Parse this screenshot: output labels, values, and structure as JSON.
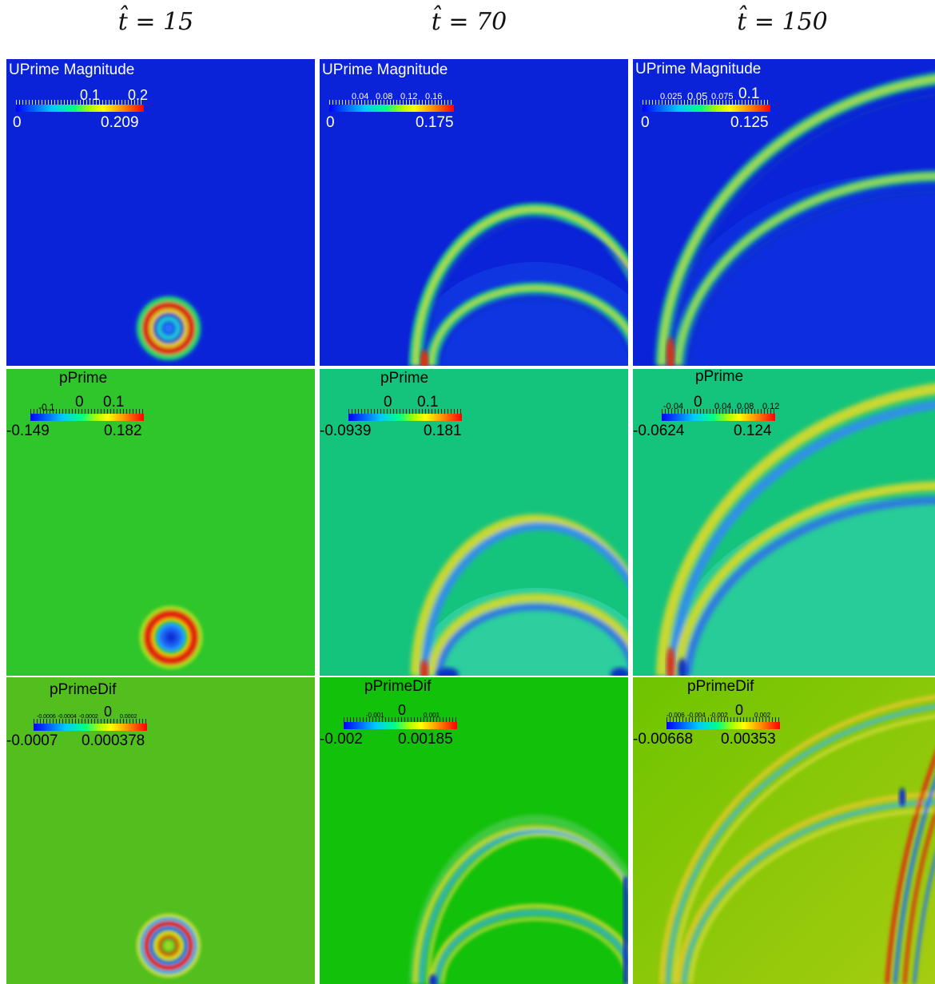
{
  "columns": [
    {
      "title": "t̂ = 15"
    },
    {
      "title": "t̂ = 70"
    },
    {
      "title": "t̂ = 150"
    }
  ],
  "panels": [
    {
      "label": "UPrime Magnitude",
      "range_min": "0",
      "range_max": "0.209",
      "ticks": [
        "0.1",
        "0.2"
      ]
    },
    {
      "label": "UPrime Magnitude",
      "range_min": "0",
      "range_max": "0.175",
      "ticks": [
        "0.04",
        "0.08",
        "0.12",
        "0.16"
      ]
    },
    {
      "label": "UPrime Magnitude",
      "range_min": "0",
      "range_max": "0.125",
      "ticks": [
        "0.025",
        "0.05",
        "0.075",
        "0.1"
      ]
    },
    {
      "label": "pPrime",
      "range_min": "-0.149",
      "range_max": "0.182",
      "ticks": [
        "-0.1",
        "0",
        "0.1"
      ]
    },
    {
      "label": "pPrime",
      "range_min": "-0.0939",
      "range_max": "0.181",
      "ticks": [
        "0",
        "0.1"
      ]
    },
    {
      "label": "pPrime",
      "range_min": "-0.0624",
      "range_max": "0.124",
      "ticks": [
        "-0.04",
        "0",
        "0.04",
        "0.08",
        "0.12"
      ]
    },
    {
      "label": "pPrimeDif",
      "range_min": "-0.0007",
      "range_max": "0.000378",
      "ticks": [
        "-0.0006",
        "-0.0004",
        "-0.0002",
        "0",
        "0.0002"
      ]
    },
    {
      "label": "pPrimeDif",
      "range_min": "-0.002",
      "range_max": "0.00185",
      "ticks": [
        "-0.001",
        "0",
        "0.001"
      ]
    },
    {
      "label": "pPrimeDif",
      "range_min": "-0.00668",
      "range_max": "0.00353",
      "ticks": [
        "-0.006",
        "-0.004",
        "-0.002",
        "0",
        "0.002"
      ]
    }
  ],
  "colors": {
    "uprime_background": "#0a22d8",
    "pprime_background_early": "#2ec62a",
    "pprime_background_late": "#14c47c",
    "pprimedif_background_early": "#52bf1e",
    "pprimedif_background_mid": "#12c10a",
    "pprimedif_background_late": "#7cc400",
    "colormap": [
      "#0000ff",
      "#00c8ff",
      "#00ff88",
      "#aaff00",
      "#ffff00",
      "#ff9900",
      "#ff0000"
    ]
  }
}
